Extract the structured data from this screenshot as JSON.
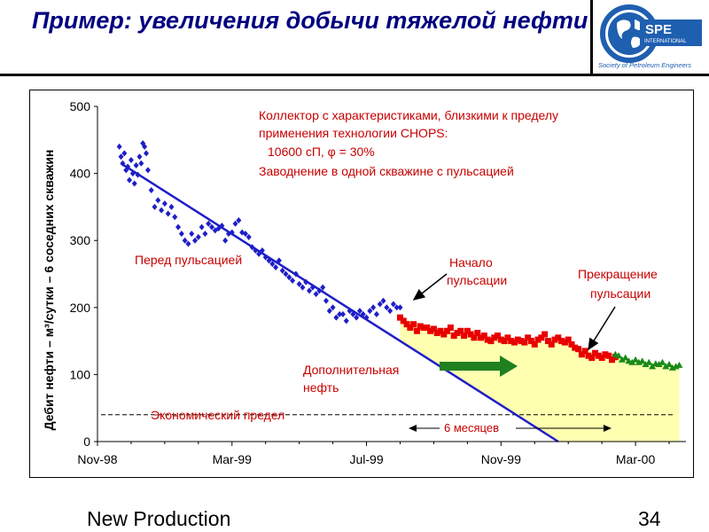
{
  "slide": {
    "title": "Пример: увеличения добычи тяжелой нефти",
    "footer_left": "New Production",
    "page_number": "34"
  },
  "logo": {
    "name": "SPE",
    "sub": "INTERNATIONAL",
    "caption": "Society of Petroleum Engineers",
    "color": "#1f5fb0"
  },
  "chart_data": {
    "type": "scatter",
    "ylabel": "Дебит нефти – м³/сутки – 6 соседних скважин",
    "ylim": [
      0,
      500
    ],
    "yticks": [
      "0",
      "100",
      "200",
      "300",
      "400",
      "500"
    ],
    "xticks": [
      "Nov-98",
      "Mar-99",
      "Jul-99",
      "Nov-99",
      "Mar-00"
    ],
    "x_unit": "months since Nov-98",
    "xlim": [
      0,
      17.5
    ],
    "grid": false,
    "series": [
      {
        "color": "#1e1ec8",
        "marker": "diamond",
        "points": [
          [
            0.65,
            440
          ],
          [
            0.7,
            425
          ],
          [
            0.75,
            415
          ],
          [
            0.8,
            430
          ],
          [
            0.85,
            405
          ],
          [
            0.9,
            410
          ],
          [
            0.95,
            390
          ],
          [
            1.0,
            420
          ],
          [
            1.05,
            400
          ],
          [
            1.1,
            385
          ],
          [
            1.15,
            412
          ],
          [
            1.2,
            398
          ],
          [
            1.25,
            425
          ],
          [
            1.3,
            415
          ],
          [
            1.35,
            445
          ],
          [
            1.4,
            440
          ],
          [
            1.45,
            430
          ],
          [
            1.5,
            405
          ],
          [
            1.6,
            375
          ],
          [
            1.7,
            350
          ],
          [
            1.8,
            360
          ],
          [
            1.9,
            345
          ],
          [
            2.0,
            355
          ],
          [
            2.1,
            340
          ],
          [
            2.2,
            350
          ],
          [
            2.3,
            335
          ],
          [
            2.4,
            320
          ],
          [
            2.5,
            310
          ],
          [
            2.6,
            300
          ],
          [
            2.7,
            295
          ],
          [
            2.8,
            310
          ],
          [
            2.9,
            300
          ],
          [
            3.0,
            305
          ],
          [
            3.1,
            320
          ],
          [
            3.2,
            310
          ],
          [
            3.3,
            325
          ],
          [
            3.4,
            320
          ],
          [
            3.5,
            315
          ],
          [
            3.6,
            318
          ],
          [
            3.7,
            322
          ],
          [
            3.8,
            300
          ],
          [
            3.9,
            310
          ],
          [
            4.0,
            312
          ],
          [
            4.1,
            325
          ],
          [
            4.2,
            330
          ],
          [
            4.3,
            312
          ],
          [
            4.4,
            310
          ],
          [
            4.5,
            305
          ],
          [
            4.6,
            290
          ],
          [
            4.7,
            285
          ],
          [
            4.8,
            280
          ],
          [
            4.9,
            285
          ],
          [
            5.0,
            275
          ],
          [
            5.1,
            270
          ],
          [
            5.2,
            265
          ],
          [
            5.3,
            260
          ],
          [
            5.4,
            270
          ],
          [
            5.5,
            255
          ],
          [
            5.6,
            250
          ],
          [
            5.7,
            245
          ],
          [
            5.8,
            240
          ],
          [
            5.9,
            250
          ],
          [
            6.0,
            235
          ],
          [
            6.1,
            230
          ],
          [
            6.2,
            238
          ],
          [
            6.3,
            225
          ],
          [
            6.4,
            230
          ],
          [
            6.5,
            220
          ],
          [
            6.6,
            225
          ],
          [
            6.7,
            230
          ],
          [
            6.8,
            210
          ],
          [
            6.9,
            195
          ],
          [
            7.0,
            200
          ],
          [
            7.1,
            185
          ],
          [
            7.2,
            190
          ],
          [
            7.3,
            190
          ],
          [
            7.4,
            180
          ],
          [
            7.5,
            195
          ],
          [
            7.6,
            190
          ],
          [
            7.7,
            185
          ],
          [
            7.8,
            195
          ],
          [
            7.9,
            190
          ],
          [
            8.0,
            185
          ],
          [
            8.1,
            195
          ],
          [
            8.2,
            200
          ],
          [
            8.3,
            190
          ],
          [
            8.4,
            205
          ],
          [
            8.5,
            210
          ],
          [
            8.6,
            200
          ],
          [
            8.7,
            195
          ],
          [
            8.8,
            205
          ],
          [
            8.9,
            200
          ],
          [
            9.0,
            200
          ]
        ]
      },
      {
        "color": "#e80000",
        "marker": "square",
        "points": [
          [
            9.0,
            185
          ],
          [
            9.1,
            180
          ],
          [
            9.2,
            175
          ],
          [
            9.3,
            170
          ],
          [
            9.4,
            175
          ],
          [
            9.5,
            165
          ],
          [
            9.6,
            172
          ],
          [
            9.7,
            170
          ],
          [
            9.8,
            170
          ],
          [
            9.9,
            165
          ],
          [
            10.0,
            168
          ],
          [
            10.1,
            162
          ],
          [
            10.2,
            165
          ],
          [
            10.3,
            160
          ],
          [
            10.4,
            165
          ],
          [
            10.5,
            170
          ],
          [
            10.6,
            158
          ],
          [
            10.7,
            162
          ],
          [
            10.8,
            165
          ],
          [
            10.9,
            158
          ],
          [
            11.0,
            165
          ],
          [
            11.1,
            160
          ],
          [
            11.2,
            155
          ],
          [
            11.3,
            162
          ],
          [
            11.4,
            155
          ],
          [
            11.5,
            158
          ],
          [
            11.6,
            152
          ],
          [
            11.7,
            150
          ],
          [
            11.8,
            155
          ],
          [
            11.9,
            158
          ],
          [
            12.0,
            152
          ],
          [
            12.1,
            150
          ],
          [
            12.2,
            155
          ],
          [
            12.3,
            150
          ],
          [
            12.4,
            148
          ],
          [
            12.5,
            152
          ],
          [
            12.6,
            150
          ],
          [
            12.7,
            148
          ],
          [
            12.8,
            155
          ],
          [
            12.9,
            150
          ],
          [
            13.0,
            145
          ],
          [
            13.1,
            152
          ],
          [
            13.2,
            155
          ],
          [
            13.3,
            160
          ],
          [
            13.4,
            150
          ],
          [
            13.5,
            145
          ],
          [
            13.6,
            152
          ],
          [
            13.7,
            155
          ],
          [
            13.8,
            150
          ],
          [
            13.9,
            148
          ],
          [
            14.0,
            152
          ],
          [
            14.1,
            145
          ],
          [
            14.2,
            140
          ],
          [
            14.3,
            138
          ],
          [
            14.4,
            130
          ],
          [
            14.5,
            135
          ],
          [
            14.6,
            128
          ],
          [
            14.7,
            125
          ],
          [
            14.8,
            132
          ],
          [
            14.9,
            128
          ],
          [
            15.0,
            125
          ],
          [
            15.1,
            130
          ],
          [
            15.2,
            128
          ],
          [
            15.3,
            122
          ],
          [
            15.4,
            126
          ]
        ]
      },
      {
        "color": "#1a8a1a",
        "marker": "triangle",
        "points": [
          [
            15.4,
            130
          ],
          [
            15.5,
            128
          ],
          [
            15.6,
            122
          ],
          [
            15.7,
            125
          ],
          [
            15.8,
            120
          ],
          [
            15.9,
            118
          ],
          [
            16.0,
            122
          ],
          [
            16.1,
            118
          ],
          [
            16.2,
            120
          ],
          [
            16.3,
            115
          ],
          [
            16.4,
            118
          ],
          [
            16.5,
            112
          ],
          [
            16.6,
            116
          ],
          [
            16.7,
            115
          ],
          [
            16.8,
            118
          ],
          [
            16.9,
            112
          ],
          [
            17.0,
            115
          ],
          [
            17.1,
            110
          ],
          [
            17.2,
            112
          ],
          [
            17.3,
            114
          ]
        ]
      }
    ],
    "trend_line": {
      "color": "#1e1ec8",
      "from": [
        0.7,
        415
      ],
      "to": [
        13.7,
        0
      ]
    },
    "additional_oil_area": {
      "color": "#ffffb0",
      "upper": [
        [
          9.0,
          185
        ],
        [
          10.0,
          168
        ],
        [
          11.0,
          162
        ],
        [
          12.0,
          152
        ],
        [
          13.0,
          148
        ],
        [
          14.0,
          148
        ],
        [
          15.0,
          128
        ],
        [
          16.0,
          120
        ],
        [
          17.3,
          114
        ]
      ],
      "lower_trend_to": [
        13.7,
        0
      ],
      "right_x": 17.3
    },
    "economic_limit": {
      "y": 40,
      "label": "Экономический предел"
    },
    "annotations": {
      "reservoir": [
        "Коллектор с характеристиками, близкими к пределу",
        "применения технологии CHOPS:",
        "10600 сП, φ = 30%",
        "Заводнение в одной скважине с пульсацией"
      ],
      "before_pulsing": "Перед пульсацией",
      "start_pulsing": [
        "Начало",
        "пульсации"
      ],
      "stop_pulsing": [
        "Прекращение",
        "пульсации"
      ],
      "additional_oil": [
        "Дополнительная",
        "нефть"
      ],
      "six_months": "6 месяцев"
    },
    "colors": {
      "annotation_red": "#c80000",
      "arrow_green": "#208020",
      "axis": "#000000"
    }
  }
}
